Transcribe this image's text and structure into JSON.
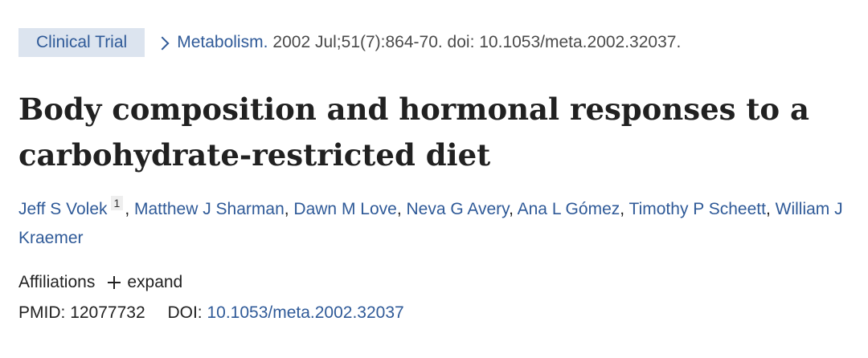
{
  "header": {
    "publication_type": "Clinical Trial",
    "journal": "Metabolism.",
    "citation": "2002 Jul;51(7):864-70. doi: 10.1053/meta.2002.32037."
  },
  "article": {
    "title_line1": "Body composition and hormonal responses to a",
    "title_line2": "carbohydrate-restricted diet"
  },
  "authors": [
    {
      "name": "Jeff S Volek",
      "affiliation": "1"
    },
    {
      "name": "Matthew J Sharman"
    },
    {
      "name": "Dawn M Love"
    },
    {
      "name": "Neva G Avery"
    },
    {
      "name": "Ana L Gómez"
    },
    {
      "name": "Timothy P Scheett"
    },
    {
      "name": "William J Kraemer"
    }
  ],
  "affiliations": {
    "label": "Affiliations",
    "expand_label": "expand"
  },
  "identifiers": {
    "pmid_label": "PMID:",
    "pmid_value": "12077732",
    "doi_label": "DOI:",
    "doi_value": "10.1053/meta.2002.32037"
  },
  "icons": {
    "journal_link": "chevron-right-icon",
    "affiliations_toggle": "plus-icon"
  },
  "colors": {
    "link": "#2f5a98",
    "badge_bg": "#dce4ef",
    "text": "#212121"
  }
}
